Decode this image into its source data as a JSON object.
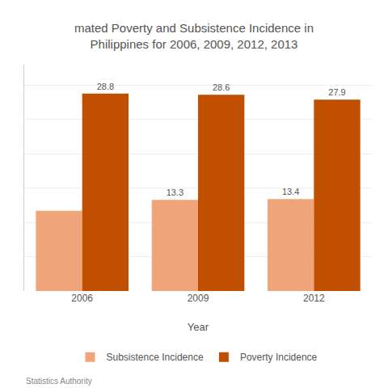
{
  "chart_data": {
    "type": "bar",
    "title": "mated Poverty and Subsistence Incidence in\nPhilippines for 2006, 2009, 2012, 2013",
    "xlabel": "Year",
    "categories": [
      "2006",
      "2009",
      "2012"
    ],
    "series": [
      {
        "name": "Subsistence Incidence",
        "color": "#f0a47a",
        "values": [
          11.7,
          13.3,
          13.4
        ],
        "value_labels": [
          null,
          "13.3",
          "13.4"
        ]
      },
      {
        "name": "Poverty Incidence",
        "color": "#c05000",
        "values": [
          28.8,
          28.6,
          27.9
        ]
      }
    ],
    "ylim": [
      0,
      33
    ],
    "yticks": [
      0,
      5,
      10,
      15,
      20,
      25,
      30
    ],
    "grid": true,
    "tick_labels": "x",
    "legend": "bottom",
    "data_labels": true,
    "annotations": [
      "Statistics Authority"
    ]
  }
}
